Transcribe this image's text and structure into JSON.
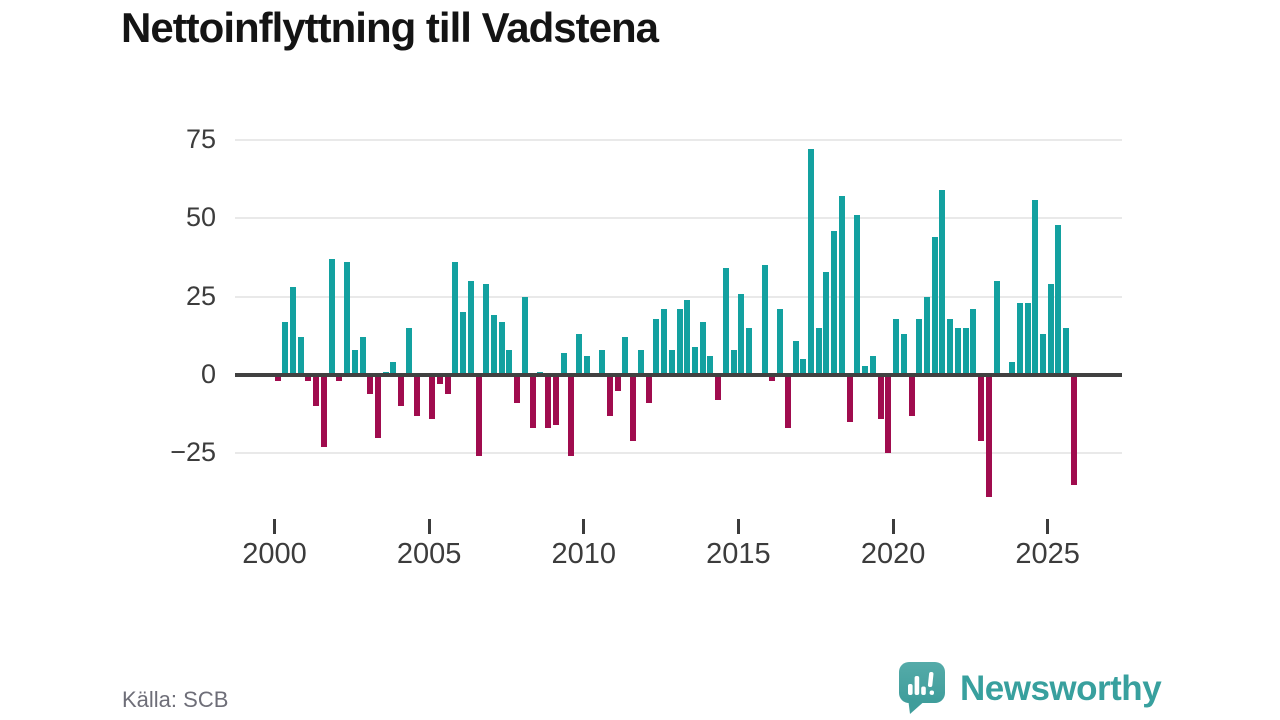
{
  "title": "Nettoinflyttning till Vadstena",
  "source": "Källa: SCB",
  "brand": {
    "name": "Newsworthy",
    "logo_icon": "speech-bubble-with-bar-chart-and-exclamation"
  },
  "chart_data": {
    "type": "bar",
    "title": "Nettoinflyttning till Vadstena",
    "frequency": "quarterly",
    "period_start": "2000 Q1",
    "period_end": "2025 Q4",
    "xlabel": "",
    "ylabel": "",
    "x_tick_labels": [
      "2000",
      "2005",
      "2010",
      "2015",
      "2020",
      "2025"
    ],
    "y_ticks": [
      75,
      50,
      25,
      0,
      -25
    ],
    "ylim": [
      -45,
      80
    ],
    "grid": "horizontal",
    "legend": "none",
    "colors": {
      "positive": "#13a1a0",
      "negative": "#a00c4e",
      "axis": "#414141",
      "gridline": "#e9e9e9"
    },
    "series": [
      {
        "year": 2000,
        "values": [
          -2,
          17,
          28,
          12
        ]
      },
      {
        "year": 2001,
        "values": [
          -2,
          -10,
          -23,
          37
        ]
      },
      {
        "year": 2002,
        "values": [
          -2,
          36,
          8,
          12
        ]
      },
      {
        "year": 2003,
        "values": [
          -6,
          -20,
          1,
          4
        ]
      },
      {
        "year": 2004,
        "values": [
          -10,
          15,
          -13,
          0
        ]
      },
      {
        "year": 2005,
        "values": [
          -14,
          -3,
          -6,
          36
        ]
      },
      {
        "year": 2006,
        "values": [
          20,
          30,
          -26,
          29
        ]
      },
      {
        "year": 2007,
        "values": [
          19,
          17,
          8,
          -9
        ]
      },
      {
        "year": 2008,
        "values": [
          25,
          -17,
          1,
          -17
        ]
      },
      {
        "year": 2009,
        "values": [
          -16,
          7,
          -26,
          13
        ]
      },
      {
        "year": 2010,
        "values": [
          6,
          0,
          8,
          -13
        ]
      },
      {
        "year": 2011,
        "values": [
          -5,
          12,
          -21,
          8
        ]
      },
      {
        "year": 2012,
        "values": [
          -9,
          18,
          21,
          8
        ]
      },
      {
        "year": 2013,
        "values": [
          21,
          24,
          9,
          17
        ]
      },
      {
        "year": 2014,
        "values": [
          6,
          -8,
          34,
          8
        ]
      },
      {
        "year": 2015,
        "values": [
          26,
          15,
          0,
          35
        ]
      },
      {
        "year": 2016,
        "values": [
          -2,
          21,
          -17,
          11
        ]
      },
      {
        "year": 2017,
        "values": [
          5,
          72,
          15,
          33
        ]
      },
      {
        "year": 2018,
        "values": [
          46,
          57,
          -15,
          51
        ]
      },
      {
        "year": 2019,
        "values": [
          3,
          6,
          -14,
          -25
        ]
      },
      {
        "year": 2020,
        "values": [
          18,
          13,
          -13,
          18
        ]
      },
      {
        "year": 2021,
        "values": [
          25,
          44,
          59,
          18
        ]
      },
      {
        "year": 2022,
        "values": [
          15,
          15,
          21,
          -21
        ]
      },
      {
        "year": 2023,
        "values": [
          -39,
          30,
          0,
          4
        ]
      },
      {
        "year": 2024,
        "values": [
          23,
          23,
          56,
          13
        ]
      },
      {
        "year": 2025,
        "values": [
          29,
          48,
          15,
          -35
        ]
      }
    ]
  }
}
